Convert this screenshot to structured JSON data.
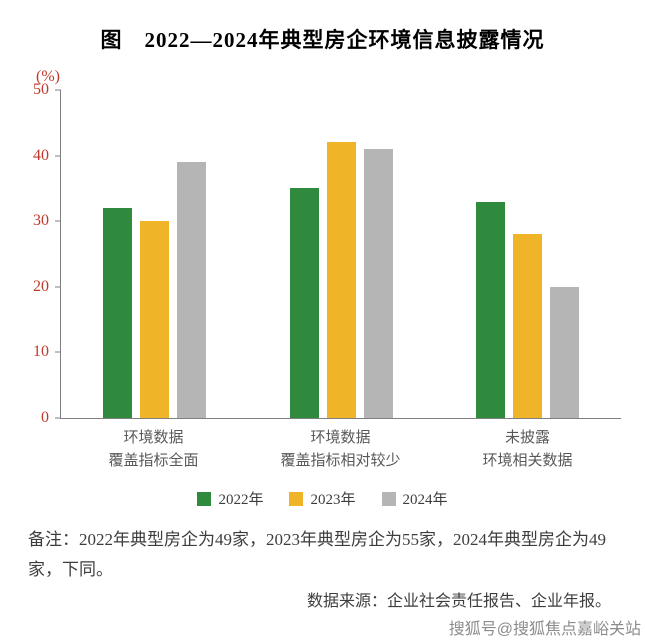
{
  "title": "图　2022—2024年典型房企环境信息披露情况",
  "chart_data": {
    "type": "bar",
    "title": "图　2022—2024年典型房企环境信息披露情况",
    "unit_label": "(%)",
    "ylim": [
      0,
      50
    ],
    "yticks": [
      0,
      10,
      20,
      30,
      40,
      50
    ],
    "grid": false,
    "legend_position": "bottom",
    "axis_tick_color": "#c0392b",
    "categories": [
      [
        "环境数据",
        "覆盖指标全面"
      ],
      [
        "环境数据",
        "覆盖指标相对较少"
      ],
      [
        "未披露",
        "环境相关数据"
      ]
    ],
    "series": [
      {
        "name": "2022年",
        "color": "#2f8a3d",
        "values": [
          32,
          35,
          33
        ]
      },
      {
        "name": "2023年",
        "color": "#f0b429",
        "values": [
          30,
          42,
          28
        ]
      },
      {
        "name": "2024年",
        "color": "#b5b5b5",
        "values": [
          39,
          41,
          20
        ]
      }
    ]
  },
  "note": "备注：2022年典型房企为49家，2023年典型房企为55家，2024年典型房企为49家，下同。",
  "source": "数据来源：企业社会责任报告、企业年报。",
  "watermark": "搜狐号@搜狐焦点嘉峪关站"
}
